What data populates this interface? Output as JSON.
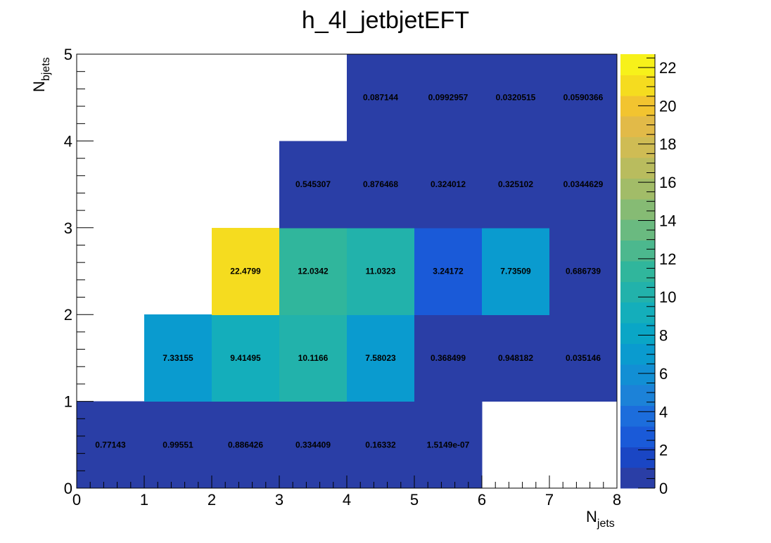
{
  "chart_data": {
    "type": "heatmap",
    "title": "h_4l_jetbjetEFT",
    "xlabel": {
      "base": "N",
      "sub": "jets"
    },
    "ylabel": {
      "base": "N",
      "sub": "bjets"
    },
    "xlim": [
      0,
      8
    ],
    "ylim": [
      0,
      5
    ],
    "x_ticks": [
      "0",
      "1",
      "2",
      "3",
      "4",
      "5",
      "6",
      "7",
      "8"
    ],
    "y_ticks": [
      "0",
      "1",
      "2",
      "3",
      "4",
      "5"
    ],
    "colorbar": {
      "min": 0,
      "max": 22.48,
      "ticks": [
        "0",
        "2",
        "4",
        "6",
        "8",
        "10",
        "12",
        "14",
        "16",
        "18",
        "20",
        "22"
      ],
      "levels": 20,
      "colors": [
        "#2a3ea6",
        "#1a46c4",
        "#1a5ad8",
        "#1c6ddc",
        "#1c82d8",
        "#128fd4",
        "#0a9bcf",
        "#0aa6c6",
        "#14aebb",
        "#22b2ab",
        "#30b69c",
        "#4cb88e",
        "#6aba80",
        "#86bb74",
        "#a2bc68",
        "#b9bc5e",
        "#cfbc54",
        "#e2ba48",
        "#f2c430",
        "#f5dc1f",
        "#f7f11a"
      ]
    },
    "cells": [
      {
        "x": 0,
        "y": 0,
        "value": 0.77143,
        "label": "0.77143"
      },
      {
        "x": 1,
        "y": 0,
        "value": 0.99551,
        "label": "0.99551"
      },
      {
        "x": 2,
        "y": 0,
        "value": 0.886426,
        "label": "0.886426"
      },
      {
        "x": 3,
        "y": 0,
        "value": 0.334409,
        "label": "0.334409"
      },
      {
        "x": 4,
        "y": 0,
        "value": 0.16332,
        "label": "0.16332"
      },
      {
        "x": 5,
        "y": 0,
        "value": 1.5149e-07,
        "label": "1.5149e-07"
      },
      {
        "x": 1,
        "y": 1,
        "value": 7.33155,
        "label": "7.33155"
      },
      {
        "x": 2,
        "y": 1,
        "value": 9.41495,
        "label": "9.41495"
      },
      {
        "x": 3,
        "y": 1,
        "value": 10.1166,
        "label": "10.1166"
      },
      {
        "x": 4,
        "y": 1,
        "value": 7.58023,
        "label": "7.58023"
      },
      {
        "x": 5,
        "y": 1,
        "value": 0.368499,
        "label": "0.368499"
      },
      {
        "x": 6,
        "y": 1,
        "value": 0.948182,
        "label": "0.948182"
      },
      {
        "x": 7,
        "y": 1,
        "value": 0.035146,
        "label": "0.035146"
      },
      {
        "x": 2,
        "y": 2,
        "value": 22.4799,
        "label": "22.4799"
      },
      {
        "x": 3,
        "y": 2,
        "value": 12.0342,
        "label": "12.0342"
      },
      {
        "x": 4,
        "y": 2,
        "value": 11.0323,
        "label": "11.0323"
      },
      {
        "x": 5,
        "y": 2,
        "value": 3.24172,
        "label": "3.24172"
      },
      {
        "x": 6,
        "y": 2,
        "value": 7.73509,
        "label": "7.73509"
      },
      {
        "x": 7,
        "y": 2,
        "value": 0.686739,
        "label": "0.686739"
      },
      {
        "x": 3,
        "y": 3,
        "value": 0.545307,
        "label": "0.545307"
      },
      {
        "x": 4,
        "y": 3,
        "value": 0.876468,
        "label": "0.876468"
      },
      {
        "x": 5,
        "y": 3,
        "value": 0.324012,
        "label": "0.324012"
      },
      {
        "x": 6,
        "y": 3,
        "value": 0.325102,
        "label": "0.325102"
      },
      {
        "x": 7,
        "y": 3,
        "value": 0.0344629,
        "label": "0.0344629"
      },
      {
        "x": 4,
        "y": 4,
        "value": 0.087144,
        "label": "0.087144"
      },
      {
        "x": 5,
        "y": 4,
        "value": 0.0992957,
        "label": "0.0992957"
      },
      {
        "x": 6,
        "y": 4,
        "value": 0.0320515,
        "label": "0.0320515"
      },
      {
        "x": 7,
        "y": 4,
        "value": 0.0590366,
        "label": "0.0590366"
      }
    ]
  }
}
